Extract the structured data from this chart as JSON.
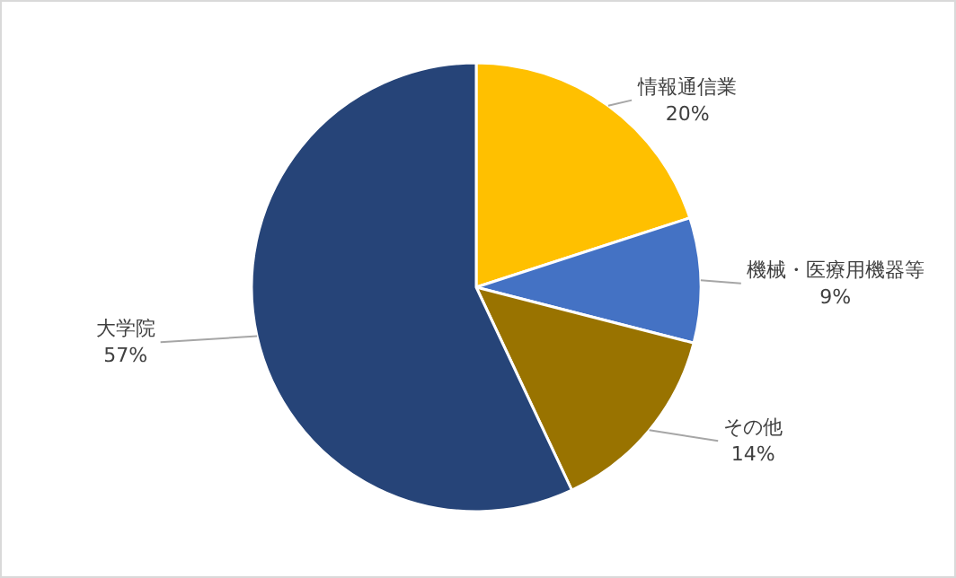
{
  "chart_data": {
    "type": "pie",
    "categories": [
      "情報通信業",
      "機械・医療用機器等",
      "その他",
      "大学院"
    ],
    "values": [
      20,
      9,
      14,
      57
    ],
    "value_labels": [
      "20%",
      "9%",
      "14%",
      "57%"
    ],
    "colors": [
      "#ffc000",
      "#4472c4",
      "#997300",
      "#264478"
    ]
  }
}
